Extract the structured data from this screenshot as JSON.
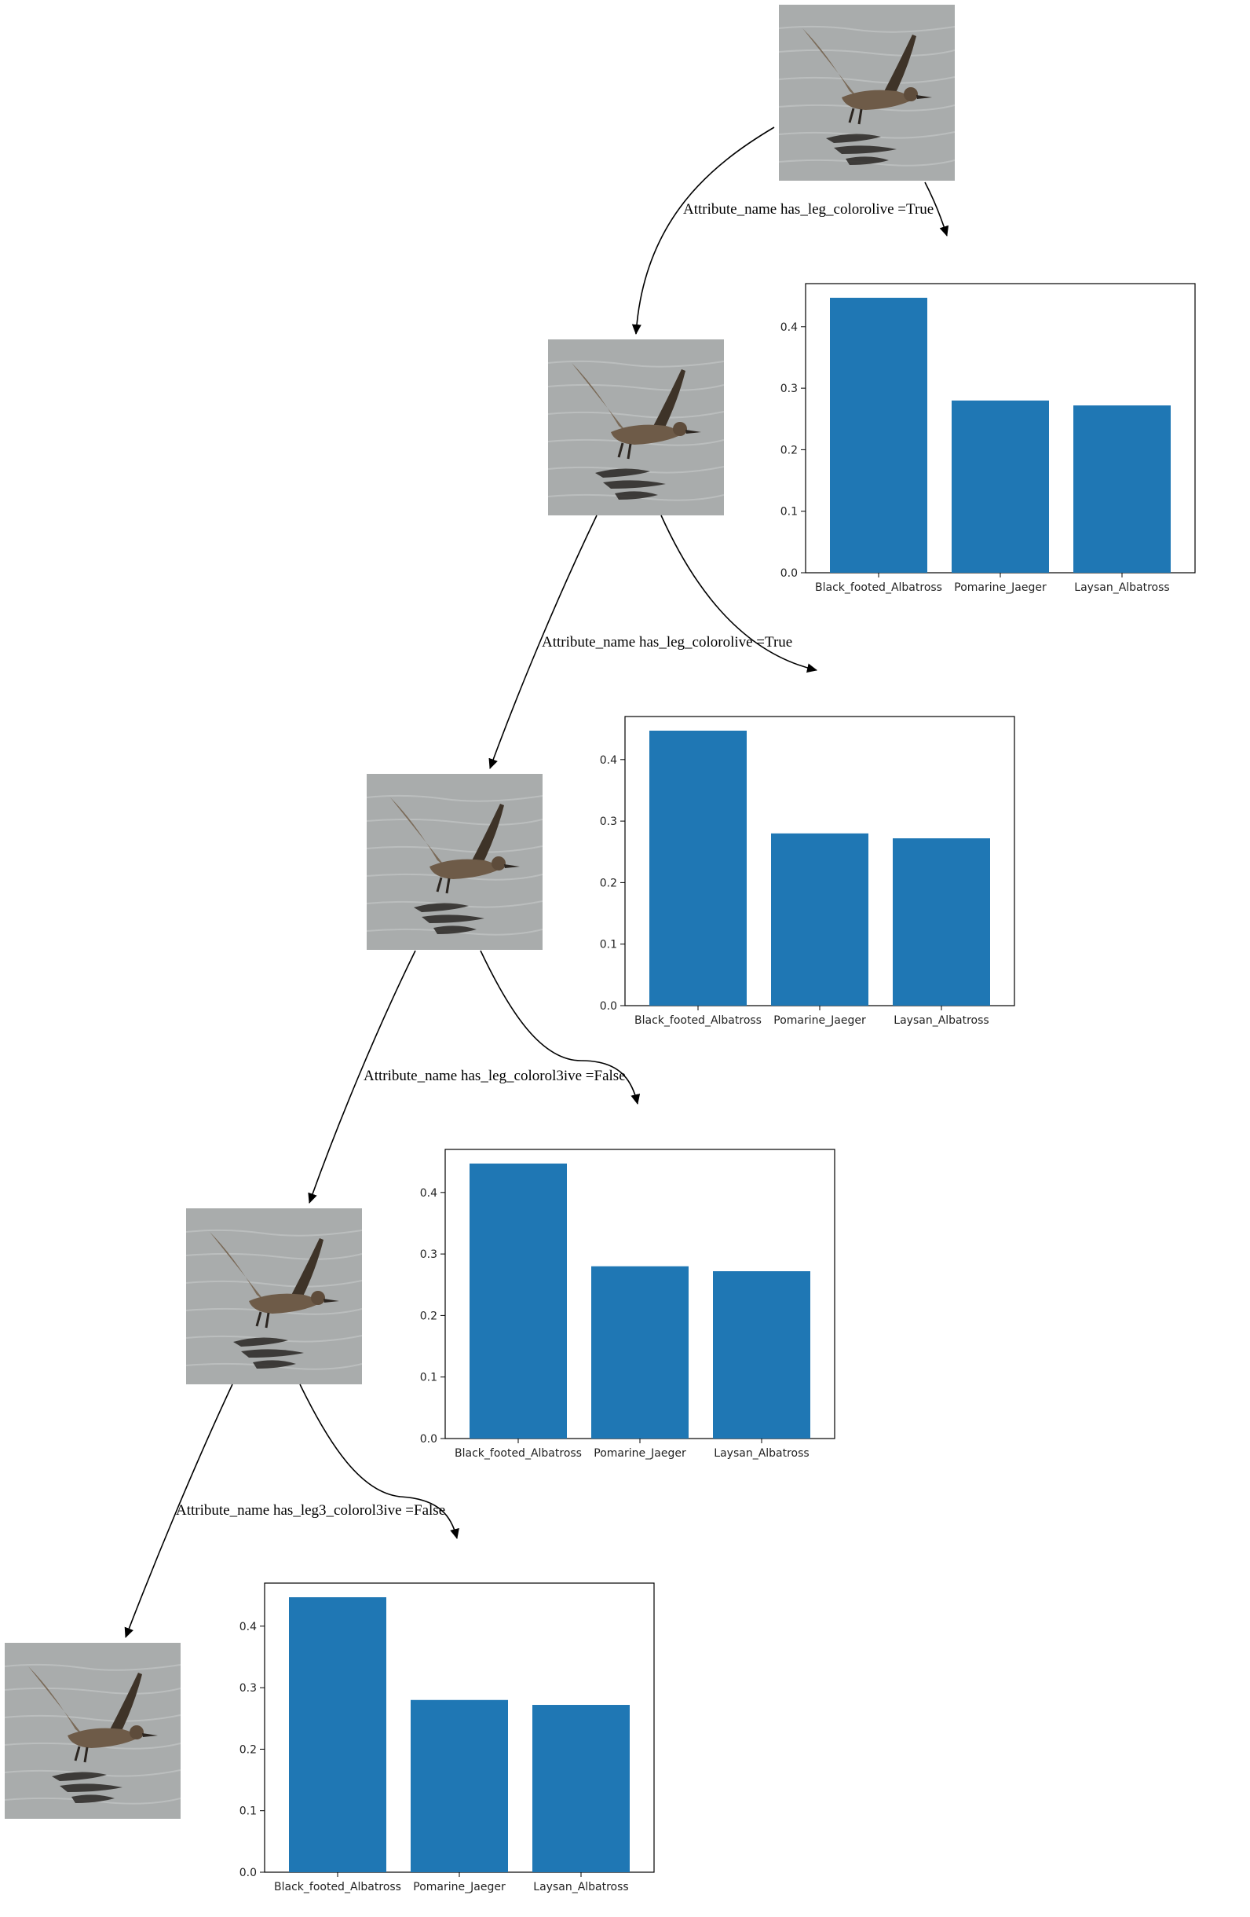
{
  "diagram": {
    "edge_labels": [
      "Attribute_name has_leg_colorolive =True",
      "Attribute_name has_leg_colorolive =True",
      "Attribute_name has_leg_colorol3ive =False",
      "Attribute_name has_leg3_colorol3ive =False"
    ],
    "nodes": [
      {
        "image": "bird-photo"
      },
      {
        "image": "bird-photo"
      },
      {
        "image": "bird-photo"
      },
      {
        "image": "bird-photo"
      },
      {
        "image": "bird-photo"
      }
    ]
  },
  "chart_data": [
    {
      "type": "bar",
      "categories": [
        "Black_footed_Albatross",
        "Pomarine_Jaeger",
        "Laysan_Albatross"
      ],
      "values": [
        0.447,
        0.28,
        0.272
      ],
      "ylim": [
        0,
        0.47
      ],
      "yticks": [
        "0.0",
        "0.1",
        "0.2",
        "0.3",
        "0.4"
      ],
      "color": "#1f77b4"
    },
    {
      "type": "bar",
      "categories": [
        "Black_footed_Albatross",
        "Pomarine_Jaeger",
        "Laysan_Albatross"
      ],
      "values": [
        0.447,
        0.28,
        0.272
      ],
      "ylim": [
        0,
        0.47
      ],
      "yticks": [
        "0.0",
        "0.1",
        "0.2",
        "0.3",
        "0.4"
      ],
      "color": "#1f77b4"
    },
    {
      "type": "bar",
      "categories": [
        "Black_footed_Albatross",
        "Pomarine_Jaeger",
        "Laysan_Albatross"
      ],
      "values": [
        0.447,
        0.28,
        0.272
      ],
      "ylim": [
        0,
        0.47
      ],
      "yticks": [
        "0.0",
        "0.1",
        "0.2",
        "0.3",
        "0.4"
      ],
      "color": "#1f77b4"
    },
    {
      "type": "bar",
      "categories": [
        "Black_footed_Albatross",
        "Pomarine_Jaeger",
        "Laysan_Albatross"
      ],
      "values": [
        0.447,
        0.28,
        0.272
      ],
      "ylim": [
        0,
        0.47
      ],
      "yticks": [
        "0.0",
        "0.1",
        "0.2",
        "0.3",
        "0.4"
      ],
      "color": "#1f77b4"
    }
  ]
}
